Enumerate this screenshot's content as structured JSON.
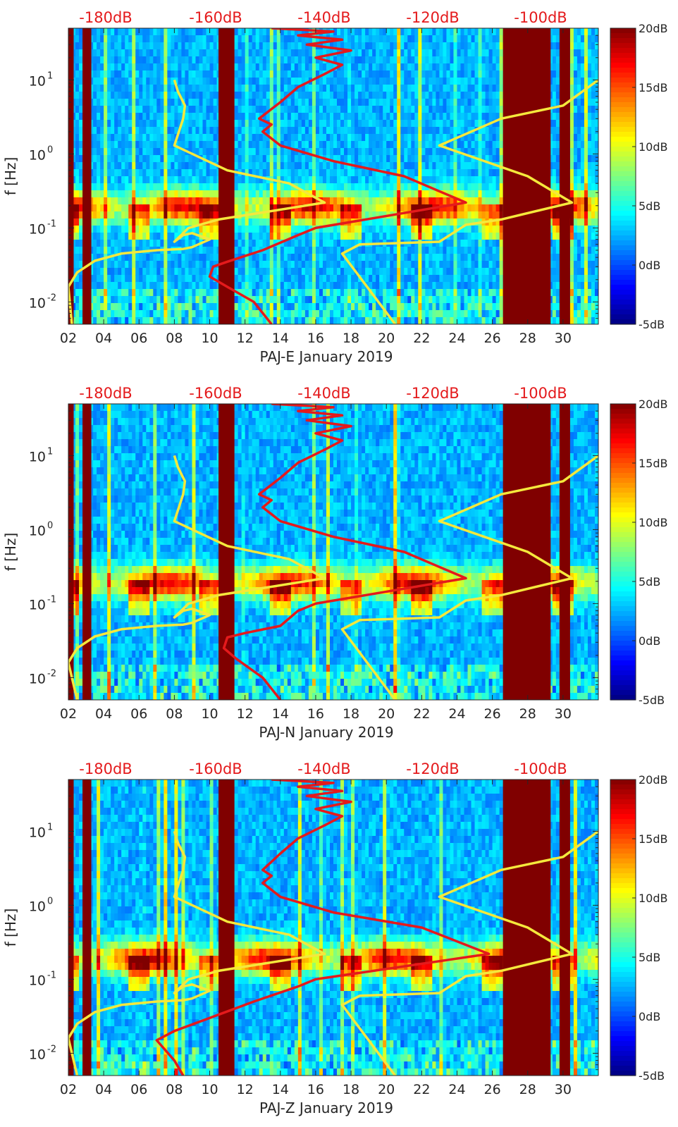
{
  "chart_data": [
    {
      "type": "heatmap",
      "panel": "PAJ-E",
      "xlabel": "PAJ-E January 2019",
      "ylabel": "f [Hz]",
      "xlim": [
        2,
        32
      ],
      "ylim": [
        0.005,
        50
      ],
      "yscale": "log",
      "x_ticks": [
        "02",
        "04",
        "06",
        "08",
        "10",
        "12",
        "14",
        "16",
        "18",
        "20",
        "22",
        "24",
        "26",
        "28",
        "30"
      ],
      "y_ticks": [
        {
          "value": 0.01,
          "base": "10",
          "exp": "-2"
        },
        {
          "value": 0.1,
          "base": "10",
          "exp": "-1"
        },
        {
          "value": 1,
          "base": "10",
          "exp": "0"
        },
        {
          "value": 10,
          "base": "10",
          "exp": "1"
        }
      ],
      "top_reference_labels": [
        "-180dB",
        "-160dB",
        "-140dB",
        "-120dB",
        "-100dB"
      ],
      "colorbar": {
        "range_db": [
          -5,
          20
        ],
        "labels": [
          "20dB",
          "15dB",
          "10dB",
          "5dB",
          "0dB",
          "-5dB"
        ]
      },
      "saturated_bands_days": [
        [
          2.0,
          2.3
        ],
        [
          2.8,
          3.3
        ],
        [
          10.5,
          11.4
        ],
        [
          26.6,
          29.3
        ],
        [
          29.8,
          30.4
        ]
      ],
      "series": [
        {
          "name": "yellow model curve",
          "color": "#f5e83c",
          "points": [
            [
              2.2,
              0.005
            ],
            [
              2.0,
              0.016
            ],
            [
              2.5,
              0.025
            ],
            [
              3.5,
              0.036
            ],
            [
              5.0,
              0.045
            ],
            [
              7.0,
              0.05
            ],
            [
              8.5,
              0.052
            ],
            [
              9.0,
              0.055
            ],
            [
              10.0,
              0.07
            ],
            [
              9.0,
              0.085
            ],
            [
              8.5,
              0.08
            ],
            [
              8.0,
              0.065
            ],
            [
              8.8,
              0.1
            ],
            [
              10.5,
              0.13
            ],
            [
              16.5,
              0.22
            ],
            [
              14.5,
              0.4
            ],
            [
              11.0,
              0.6
            ],
            [
              8.0,
              1.3
            ],
            [
              8.5,
              3.0
            ],
            [
              8.6,
              4.5
            ],
            [
              8.2,
              7.0
            ],
            [
              8.0,
              10.0
            ]
          ]
        },
        {
          "name": "yellow reference curve",
          "color": "#f5e83c",
          "points": [
            [
              20.5,
              0.005
            ],
            [
              17.5,
              0.045
            ],
            [
              18.5,
              0.06
            ],
            [
              23.0,
              0.065
            ],
            [
              24.5,
              0.11
            ],
            [
              26.5,
              0.13
            ],
            [
              30.5,
              0.22
            ],
            [
              28.0,
              0.5
            ],
            [
              23.0,
              1.3
            ],
            [
              26.5,
              3.0
            ],
            [
              30.0,
              4.5
            ],
            [
              32.0,
              10.0
            ]
          ]
        },
        {
          "name": "red reference curve",
          "color": "#e41a1c",
          "points": [
            [
              13.5,
              0.005
            ],
            [
              12.5,
              0.01
            ],
            [
              11.0,
              0.016
            ],
            [
              10.0,
              0.022
            ],
            [
              10.2,
              0.03
            ],
            [
              11.0,
              0.035
            ],
            [
              13.0,
              0.05
            ],
            [
              15.0,
              0.08
            ],
            [
              16.0,
              0.1
            ],
            [
              24.5,
              0.22
            ],
            [
              21.0,
              0.5
            ],
            [
              17.0,
              0.8
            ],
            [
              14.0,
              1.3
            ],
            [
              13.0,
              2.0
            ],
            [
              13.5,
              2.5
            ],
            [
              12.8,
              3.0
            ],
            [
              14.0,
              5.0
            ],
            [
              15.0,
              8.0
            ],
            [
              16.5,
              12.0
            ],
            [
              17.5,
              16.0
            ],
            [
              16.0,
              20.0
            ],
            [
              18.0,
              25.0
            ],
            [
              15.5,
              30.0
            ],
            [
              17.5,
              35.0
            ],
            [
              15.0,
              40.0
            ],
            [
              17.0,
              45.0
            ],
            [
              13.5,
              50.0
            ]
          ]
        }
      ]
    },
    {
      "type": "heatmap",
      "panel": "PAJ-N",
      "xlabel": "PAJ-N January 2019",
      "ylabel": "f [Hz]",
      "xlim": [
        2,
        32
      ],
      "ylim": [
        0.005,
        50
      ],
      "yscale": "log",
      "x_ticks": [
        "02",
        "04",
        "06",
        "08",
        "10",
        "12",
        "14",
        "16",
        "18",
        "20",
        "22",
        "24",
        "26",
        "28",
        "30"
      ],
      "y_ticks": [
        {
          "value": 0.01,
          "base": "10",
          "exp": "-2"
        },
        {
          "value": 0.1,
          "base": "10",
          "exp": "-1"
        },
        {
          "value": 1,
          "base": "10",
          "exp": "0"
        },
        {
          "value": 10,
          "base": "10",
          "exp": "1"
        }
      ],
      "top_reference_labels": [
        "-180dB",
        "-160dB",
        "-140dB",
        "-120dB",
        "-100dB"
      ],
      "colorbar": {
        "range_db": [
          -5,
          20
        ],
        "labels": [
          "20dB",
          "15dB",
          "10dB",
          "5dB",
          "0dB",
          "-5dB"
        ]
      },
      "saturated_bands_days": [
        [
          2.0,
          2.3
        ],
        [
          2.8,
          3.3
        ],
        [
          10.5,
          11.4
        ],
        [
          26.6,
          29.3
        ],
        [
          29.8,
          30.4
        ]
      ],
      "series": [
        {
          "name": "yellow model curve",
          "color": "#f5e83c",
          "points": [
            [
              2.5,
              0.005
            ],
            [
              2.0,
              0.016
            ],
            [
              2.5,
              0.025
            ],
            [
              3.5,
              0.036
            ],
            [
              5.0,
              0.045
            ],
            [
              7.0,
              0.05
            ],
            [
              8.5,
              0.052
            ],
            [
              9.0,
              0.055
            ],
            [
              10.0,
              0.07
            ],
            [
              9.0,
              0.085
            ],
            [
              8.5,
              0.08
            ],
            [
              8.0,
              0.065
            ],
            [
              8.8,
              0.1
            ],
            [
              10.5,
              0.13
            ],
            [
              16.5,
              0.22
            ],
            [
              14.5,
              0.4
            ],
            [
              11.0,
              0.6
            ],
            [
              8.0,
              1.3
            ],
            [
              8.5,
              3.0
            ],
            [
              8.6,
              4.5
            ],
            [
              8.2,
              7.0
            ],
            [
              8.0,
              10.0
            ]
          ]
        },
        {
          "name": "yellow reference curve",
          "color": "#f5e83c",
          "points": [
            [
              20.5,
              0.005
            ],
            [
              17.5,
              0.045
            ],
            [
              18.5,
              0.06
            ],
            [
              23.0,
              0.065
            ],
            [
              24.5,
              0.11
            ],
            [
              26.5,
              0.13
            ],
            [
              30.5,
              0.22
            ],
            [
              28.0,
              0.5
            ],
            [
              23.0,
              1.3
            ],
            [
              26.5,
              3.0
            ],
            [
              30.0,
              4.5
            ],
            [
              32.0,
              10.0
            ]
          ]
        },
        {
          "name": "red reference curve",
          "color": "#e41a1c",
          "points": [
            [
              14.0,
              0.005
            ],
            [
              13.0,
              0.01
            ],
            [
              11.5,
              0.018
            ],
            [
              10.8,
              0.025
            ],
            [
              11.0,
              0.035
            ],
            [
              12.0,
              0.04
            ],
            [
              14.0,
              0.05
            ],
            [
              15.0,
              0.08
            ],
            [
              16.0,
              0.1
            ],
            [
              24.5,
              0.22
            ],
            [
              21.0,
              0.5
            ],
            [
              17.0,
              0.8
            ],
            [
              14.0,
              1.3
            ],
            [
              13.0,
              2.0
            ],
            [
              13.5,
              2.5
            ],
            [
              12.8,
              3.0
            ],
            [
              14.0,
              5.0
            ],
            [
              15.0,
              8.0
            ],
            [
              16.5,
              12.0
            ],
            [
              17.5,
              16.0
            ],
            [
              16.0,
              20.0
            ],
            [
              18.0,
              25.0
            ],
            [
              15.5,
              30.0
            ],
            [
              17.5,
              35.0
            ],
            [
              15.0,
              40.0
            ],
            [
              17.0,
              45.0
            ],
            [
              13.5,
              50.0
            ]
          ]
        }
      ]
    },
    {
      "type": "heatmap",
      "panel": "PAJ-Z",
      "xlabel": "PAJ-Z January 2019",
      "ylabel": "f [Hz]",
      "xlim": [
        2,
        32
      ],
      "ylim": [
        0.005,
        50
      ],
      "yscale": "log",
      "x_ticks": [
        "02",
        "04",
        "06",
        "08",
        "10",
        "12",
        "14",
        "16",
        "18",
        "20",
        "22",
        "24",
        "26",
        "28",
        "30"
      ],
      "y_ticks": [
        {
          "value": 0.01,
          "base": "10",
          "exp": "-2"
        },
        {
          "value": 0.1,
          "base": "10",
          "exp": "-1"
        },
        {
          "value": 1,
          "base": "10",
          "exp": "0"
        },
        {
          "value": 10,
          "base": "10",
          "exp": "1"
        }
      ],
      "top_reference_labels": [
        "-180dB",
        "-160dB",
        "-140dB",
        "-120dB",
        "-100dB"
      ],
      "colorbar": {
        "range_db": [
          -5,
          20
        ],
        "labels": [
          "20dB",
          "15dB",
          "10dB",
          "5dB",
          "0dB",
          "-5dB"
        ]
      },
      "saturated_bands_days": [
        [
          2.0,
          2.3
        ],
        [
          2.8,
          3.3
        ],
        [
          10.5,
          11.4
        ],
        [
          26.6,
          29.3
        ],
        [
          29.8,
          30.4
        ]
      ],
      "series": [
        {
          "name": "yellow model curve",
          "color": "#f5e83c",
          "points": [
            [
              2.5,
              0.005
            ],
            [
              2.0,
              0.016
            ],
            [
              2.5,
              0.025
            ],
            [
              3.5,
              0.036
            ],
            [
              5.0,
              0.045
            ],
            [
              7.0,
              0.05
            ],
            [
              8.5,
              0.052
            ],
            [
              9.0,
              0.055
            ],
            [
              10.0,
              0.07
            ],
            [
              9.0,
              0.085
            ],
            [
              8.5,
              0.08
            ],
            [
              8.0,
              0.065
            ],
            [
              8.8,
              0.1
            ],
            [
              10.5,
              0.13
            ],
            [
              16.5,
              0.22
            ],
            [
              14.5,
              0.4
            ],
            [
              11.0,
              0.6
            ],
            [
              8.0,
              1.3
            ],
            [
              8.5,
              3.0
            ],
            [
              8.6,
              4.5
            ],
            [
              8.2,
              7.0
            ],
            [
              8.0,
              10.0
            ]
          ]
        },
        {
          "name": "yellow reference curve",
          "color": "#f5e83c",
          "points": [
            [
              20.5,
              0.005
            ],
            [
              17.5,
              0.045
            ],
            [
              18.5,
              0.06
            ],
            [
              23.0,
              0.065
            ],
            [
              24.5,
              0.11
            ],
            [
              26.5,
              0.13
            ],
            [
              30.5,
              0.22
            ],
            [
              28.0,
              0.5
            ],
            [
              23.0,
              1.3
            ],
            [
              26.5,
              3.0
            ],
            [
              30.0,
              4.5
            ],
            [
              32.0,
              10.0
            ]
          ]
        },
        {
          "name": "red reference curve",
          "color": "#e41a1c",
          "points": [
            [
              8.5,
              0.005
            ],
            [
              8.0,
              0.008
            ],
            [
              7.0,
              0.015
            ],
            [
              8.0,
              0.02
            ],
            [
              10.0,
              0.03
            ],
            [
              12.5,
              0.05
            ],
            [
              15.0,
              0.08
            ],
            [
              16.0,
              0.1
            ],
            [
              25.8,
              0.22
            ],
            [
              22.0,
              0.5
            ],
            [
              17.0,
              0.8
            ],
            [
              14.0,
              1.3
            ],
            [
              13.0,
              2.0
            ],
            [
              13.5,
              2.5
            ],
            [
              13.0,
              3.0
            ],
            [
              14.0,
              5.0
            ],
            [
              15.0,
              8.0
            ],
            [
              16.5,
              12.0
            ],
            [
              17.5,
              16.0
            ],
            [
              16.0,
              20.0
            ],
            [
              18.0,
              25.0
            ],
            [
              15.5,
              30.0
            ],
            [
              17.5,
              35.0
            ],
            [
              15.0,
              40.0
            ],
            [
              17.0,
              45.0
            ],
            [
              13.5,
              50.0
            ]
          ]
        }
      ]
    }
  ]
}
